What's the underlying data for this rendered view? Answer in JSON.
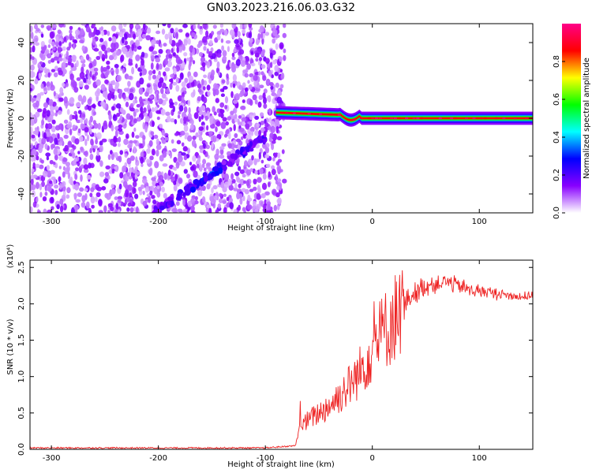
{
  "title": "GN03.2023.216.06.03.G32",
  "chart_data": [
    {
      "type": "heatmap",
      "xlabel": "Height of straight line (km)",
      "ylabel": "Frequency (Hz)",
      "xlim": [
        -320,
        150
      ],
      "ylim": [
        -50,
        50
      ],
      "xticks": [
        -300,
        -200,
        -100,
        0,
        100
      ],
      "yticks": [
        -40,
        -20,
        0,
        20,
        40
      ],
      "colorbar": {
        "label": "Normalized spectral amplitude",
        "range": [
          0,
          1
        ],
        "ticks": [
          "0.0",
          "0.2",
          "0.4",
          "0.6",
          "0.8"
        ],
        "colors": [
          "#ffffff",
          "#8800ff",
          "#0000ff",
          "#00ffff",
          "#00ff00",
          "#ffff00",
          "#ff0000",
          "#ff0088"
        ]
      },
      "features": {
        "noise_region_x": [
          -320,
          -90
        ],
        "carrier_line": {
          "x": [
            -90,
            150
          ],
          "freq": 0
        },
        "diagonal_track": {
          "x": [
            -205,
            -100
          ],
          "freq": [
            -50,
            -10
          ]
        }
      }
    },
    {
      "type": "line",
      "xlabel": "Height of straight line (km)",
      "ylabel": "SNR (10 * v/v)",
      "y_multiplier": "(x10⁴)",
      "xlim": [
        -320,
        150
      ],
      "ylim": [
        0,
        2.6
      ],
      "xticks": [
        -300,
        -200,
        -100,
        0,
        100
      ],
      "yticks": [
        "0.0",
        "0.5",
        "1.0",
        "1.5",
        "2.0",
        "2.5"
      ],
      "series": [
        {
          "color": "#ee2222",
          "x": [
            -320,
            -100,
            -72,
            -68,
            -60,
            -50,
            -40,
            -30,
            -20,
            -10,
            0,
            10,
            20,
            30,
            40,
            50,
            60,
            70,
            80,
            90,
            100,
            110,
            120,
            130,
            140,
            150
          ],
          "y": [
            0.02,
            0.02,
            0.05,
            0.3,
            0.4,
            0.5,
            0.6,
            0.75,
            0.9,
            1.1,
            1.4,
            1.6,
            1.8,
            2.0,
            2.15,
            2.25,
            2.28,
            2.3,
            2.25,
            2.2,
            2.18,
            2.15,
            2.13,
            2.12,
            2.1,
            2.1
          ]
        }
      ]
    }
  ]
}
